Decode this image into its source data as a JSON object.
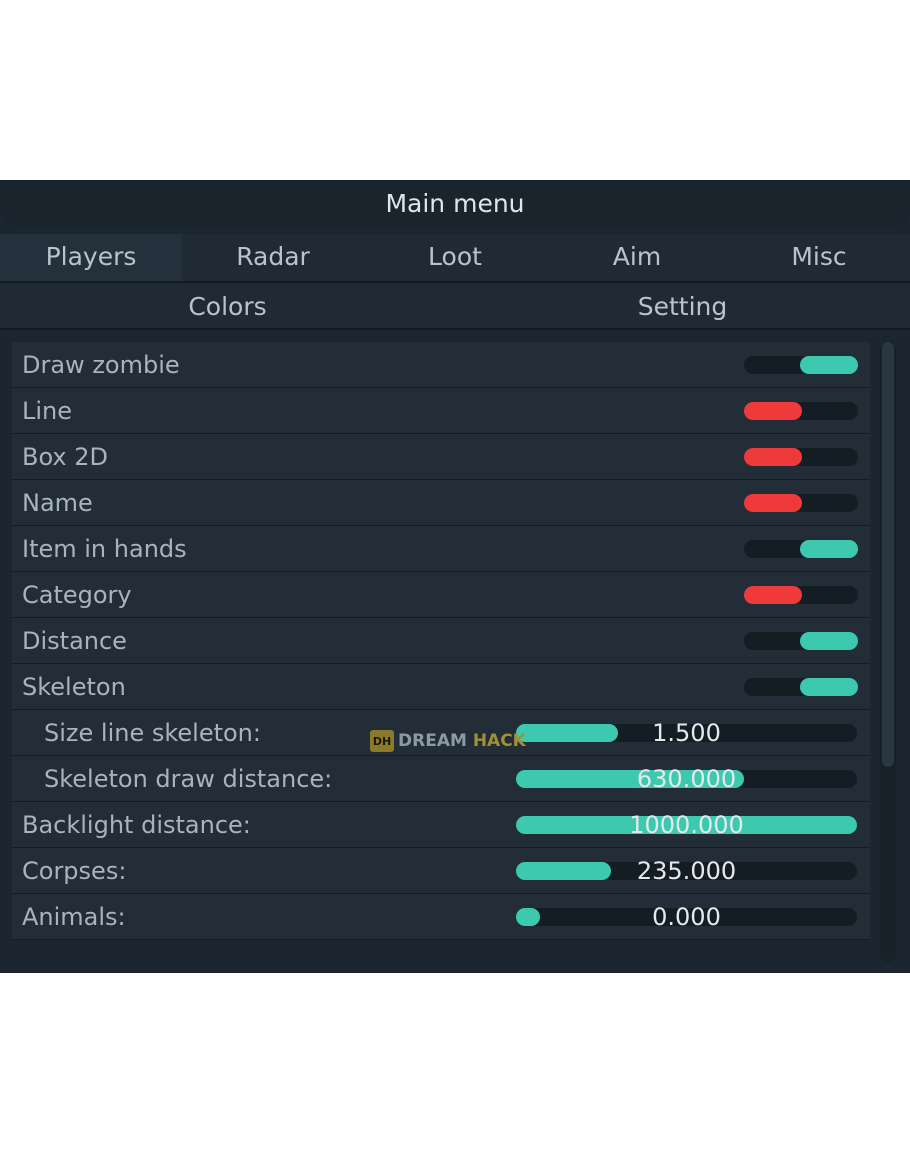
{
  "header": {
    "title": "Main menu"
  },
  "tabs_row1": [
    {
      "label": "Players",
      "active": true
    },
    {
      "label": "Radar"
    },
    {
      "label": "Loot"
    },
    {
      "label": "Aim"
    },
    {
      "label": "Misc"
    }
  ],
  "tabs_row2": [
    {
      "label": "Colors"
    },
    {
      "label": "Setting"
    }
  ],
  "rows": [
    {
      "label": "Draw zombie",
      "type": "toggle",
      "on": true
    },
    {
      "label": "Line",
      "type": "toggle",
      "on": false
    },
    {
      "label": "Box 2D",
      "type": "toggle",
      "on": false
    },
    {
      "label": "Name",
      "type": "toggle",
      "on": false
    },
    {
      "label": "Item in hands",
      "type": "toggle",
      "on": true
    },
    {
      "label": "Category",
      "type": "toggle",
      "on": false
    },
    {
      "label": "Distance",
      "type": "toggle",
      "on": true
    },
    {
      "label": "Skeleton",
      "type": "toggle",
      "on": true
    },
    {
      "label": "Size line skeleton:",
      "type": "slider",
      "sub": true,
      "value": "1.500",
      "fraction": 0.3
    },
    {
      "label": "Skeleton draw distance:",
      "type": "slider",
      "sub": true,
      "value": "630.000",
      "fraction": 0.67
    },
    {
      "label": "Backlight distance:",
      "type": "slider",
      "value": "1000.000",
      "fraction": 1.0
    },
    {
      "label": "Corpses:",
      "type": "slider",
      "value": "235.000",
      "fraction": 0.28
    },
    {
      "label": "Animals:",
      "type": "slider",
      "value": "0.000",
      "fraction": 0.0
    }
  ],
  "watermark": {
    "logo": "DH",
    "word1": "DREAM",
    "word2": "HACK"
  },
  "colors": {
    "on": "#3cc9b0",
    "off": "#ee3a3a",
    "background": "#1c2630"
  }
}
